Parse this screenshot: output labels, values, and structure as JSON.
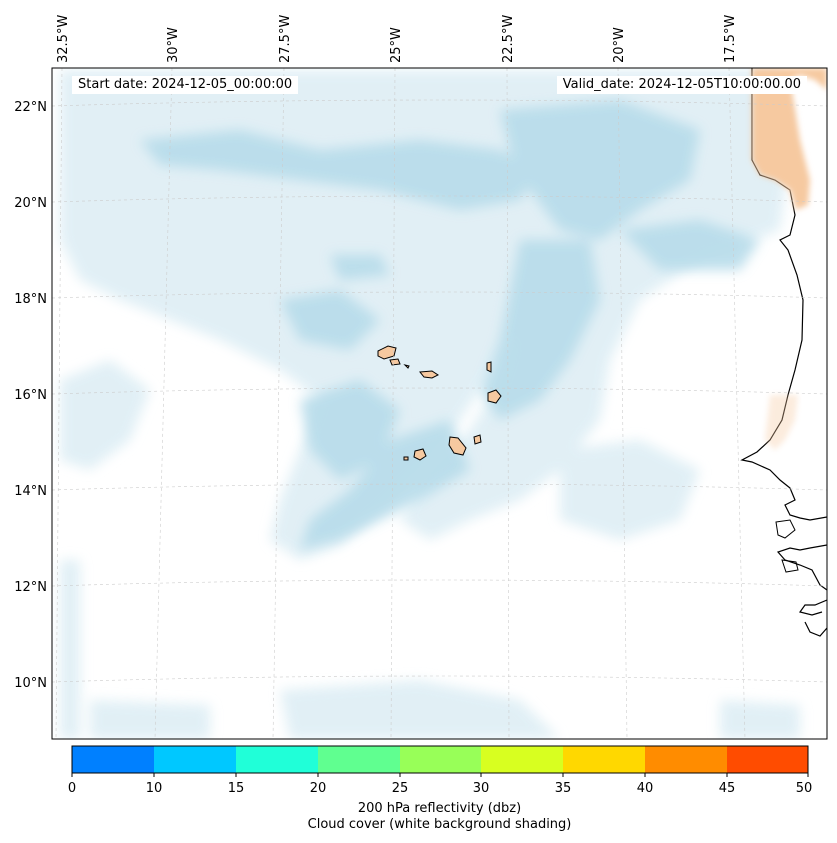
{
  "map": {
    "start_date_label": "Start date: 2024-12-05_00:00:00",
    "valid_date_label": "Valid_date: 2024-12-05T10:00:00.00",
    "lon_labels": [
      "32.5°W",
      "30°W",
      "27.5°W",
      "25°W",
      "22.5°W",
      "20°W",
      "17.5°W"
    ],
    "lat_labels": [
      "22°N",
      "20°N",
      "18°N",
      "16°N",
      "14°N",
      "12°N",
      "10°N"
    ],
    "colors": {
      "cloud": "#b7dcea",
      "cloud_light": "#dcedf4",
      "land_low_reflectivity": "#f6c9a0",
      "coast": "#000000",
      "grid": "#cccccc"
    }
  },
  "colorbar": {
    "ticks": [
      "0",
      "10",
      "15",
      "20",
      "25",
      "30",
      "35",
      "40",
      "45",
      "50"
    ],
    "colors": [
      "#0080ff",
      "#00c8ff",
      "#20ffd8",
      "#60ff90",
      "#98ff58",
      "#d8ff20",
      "#ffd800",
      "#ff8c00",
      "#ff4c00"
    ],
    "label_line1": "200 hPa reflectivity (dbz)",
    "label_line2": "Cloud cover (white background shading)"
  }
}
